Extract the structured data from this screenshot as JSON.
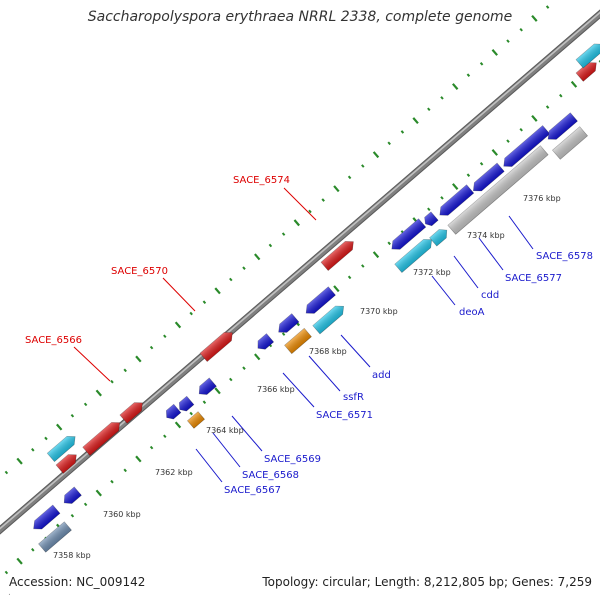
{
  "title": "Saccharopolyspora erythraea NRRL 2338, complete genome",
  "footer": {
    "accession": "Accession: NC_009142",
    "summary": "Topology: circular; Length: 8,212,805 bp; Genes: 7,259",
    "corner_mark": "."
  },
  "colors": {
    "red": "#e01818",
    "blue": "#1414d8",
    "cyan": "#22c8ec",
    "orange": "#f08c00",
    "gray": "#c8c8c8",
    "steel": "#6f8fb3",
    "backbone": "#808080",
    "ticks": "#2a8a2a",
    "label_red": "#dd0000",
    "label_blue": "#1a1acc",
    "kbp_text": "#333333"
  },
  "scale_labels": [
    "7358 kbp",
    "7360 kbp",
    "7362 kbp",
    "7364 kbp",
    "7366 kbp",
    "7368 kbp",
    "7370 kbp",
    "7372 kbp",
    "7374 kbp",
    "7376 kbp"
  ],
  "forward_genes": [
    {
      "label": "SACE_6566",
      "color": "red"
    },
    {
      "label": "SACE_6570",
      "color": "red"
    },
    {
      "label": "SACE_6574",
      "color": "red"
    }
  ],
  "reverse_genes": [
    {
      "label": "SACE_6567",
      "color": "blue"
    },
    {
      "label": "SACE_6568",
      "color": "orange"
    },
    {
      "label": "SACE_6569",
      "color": "blue"
    },
    {
      "label": "SACE_6571",
      "color": "blue"
    },
    {
      "label": "ssfR",
      "color": "orange"
    },
    {
      "label": "add",
      "color": "cyan"
    },
    {
      "label": "deoA",
      "color": "cyan"
    },
    {
      "label": "cdd",
      "color": "cyan"
    },
    {
      "label": "SACE_6577",
      "color": "blue"
    },
    {
      "label": "SACE_6578",
      "color": "blue"
    }
  ]
}
